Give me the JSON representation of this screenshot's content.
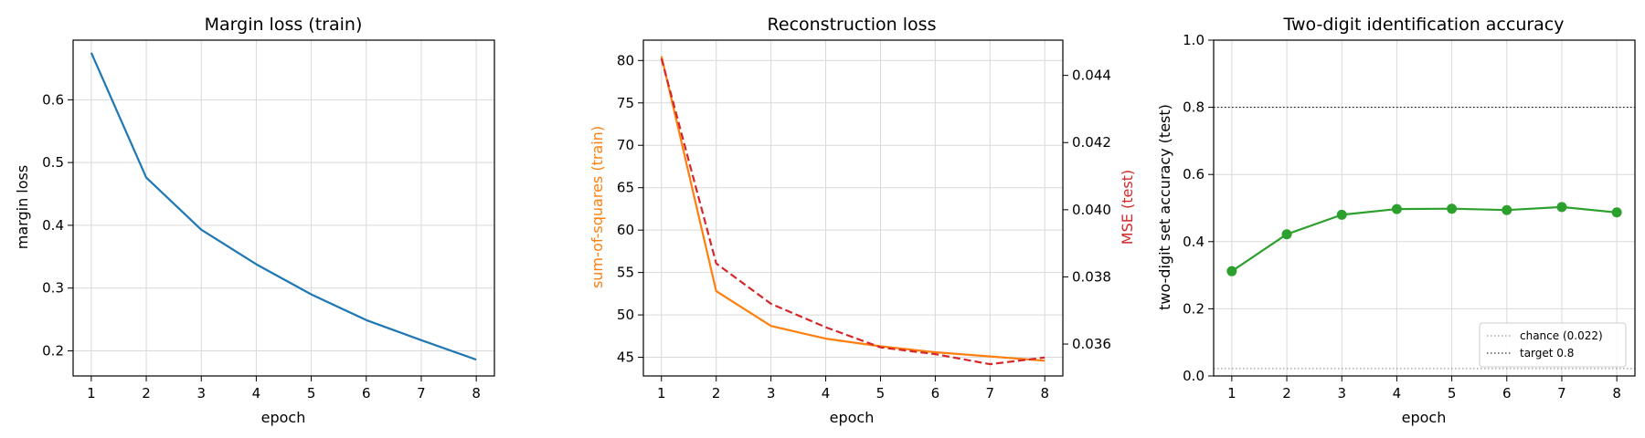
{
  "chart_data": [
    {
      "type": "line",
      "title": "Margin loss (train)",
      "xlabel": "epoch",
      "ylabel": "margin loss",
      "x": [
        1,
        2,
        3,
        4,
        5,
        6,
        7,
        8
      ],
      "xticks": [
        1,
        2,
        3,
        4,
        5,
        6,
        7,
        8
      ],
      "xlim": [
        0.67,
        8.33
      ],
      "ylim": [
        0.16,
        0.695
      ],
      "yticks": [
        0.2,
        0.3,
        0.4,
        0.5,
        0.6
      ],
      "ytick_labels": [
        "0.2",
        "0.3",
        "0.4",
        "0.5",
        "0.6"
      ],
      "grid": true,
      "series": [
        {
          "values": [
            0.675,
            0.476,
            0.393,
            0.338,
            0.29,
            0.249,
            0.217,
            0.186
          ],
          "color": "#1f77b4",
          "style": "solid"
        }
      ]
    },
    {
      "type": "line",
      "title": "Reconstruction loss",
      "xlabel": "epoch",
      "ylabel": "sum-of-squares (train)",
      "ylabel_color": "#ff7f0e",
      "y2label": "MSE (test)",
      "y2label_color": "#d62728",
      "x": [
        1,
        2,
        3,
        4,
        5,
        6,
        7,
        8
      ],
      "xticks": [
        1,
        2,
        3,
        4,
        5,
        6,
        7,
        8
      ],
      "xlim": [
        0.67,
        8.33
      ],
      "ylim": [
        42.8,
        82.4
      ],
      "yticks": [
        45,
        50,
        55,
        60,
        65,
        70,
        75,
        80
      ],
      "ytick_labels": [
        "45",
        "50",
        "55",
        "60",
        "65",
        "70",
        "75",
        "80"
      ],
      "y2lim": [
        0.03505,
        0.04505
      ],
      "y2ticks": [
        0.036,
        0.038,
        0.04,
        0.042,
        0.044
      ],
      "y2tick_labels": [
        "0.036",
        "0.038",
        "0.040",
        "0.042",
        "0.044"
      ],
      "grid": true,
      "series": [
        {
          "axis": "left",
          "values": [
            80.5,
            52.8,
            48.7,
            47.2,
            46.3,
            45.6,
            45.1,
            44.6
          ],
          "color": "#ff7f0e",
          "style": "solid"
        },
        {
          "axis": "right",
          "values": [
            0.0445,
            0.0384,
            0.0372,
            0.0365,
            0.0359,
            0.0357,
            0.0354,
            0.0356
          ],
          "color": "#d62728",
          "style": "dashed"
        }
      ]
    },
    {
      "type": "line",
      "title": "Two-digit identification accuracy",
      "xlabel": "epoch",
      "ylabel": "two-digit set accuracy (test)",
      "x": [
        1,
        2,
        3,
        4,
        5,
        6,
        7,
        8
      ],
      "xticks": [
        1,
        2,
        3,
        4,
        5,
        6,
        7,
        8
      ],
      "xlim": [
        0.67,
        8.33
      ],
      "ylim": [
        0.0,
        1.0
      ],
      "yticks": [
        0.0,
        0.2,
        0.4,
        0.6,
        0.8,
        1.0
      ],
      "ytick_labels": [
        "0.0",
        "0.2",
        "0.4",
        "0.6",
        "0.8",
        "1.0"
      ],
      "grid": true,
      "series": [
        {
          "values": [
            0.312,
            0.422,
            0.48,
            0.497,
            0.498,
            0.494,
            0.503,
            0.487
          ],
          "color": "#2ca02c",
          "style": "solid",
          "markers": true
        }
      ],
      "hlines": [
        {
          "name": "chance (0.022)",
          "y": 0.022,
          "color": "#7f7f7f",
          "style": "dotted"
        },
        {
          "name": "target 0.8",
          "y": 0.8,
          "color": "#000000",
          "style": "dotted"
        }
      ],
      "legend": "lower-right"
    }
  ]
}
